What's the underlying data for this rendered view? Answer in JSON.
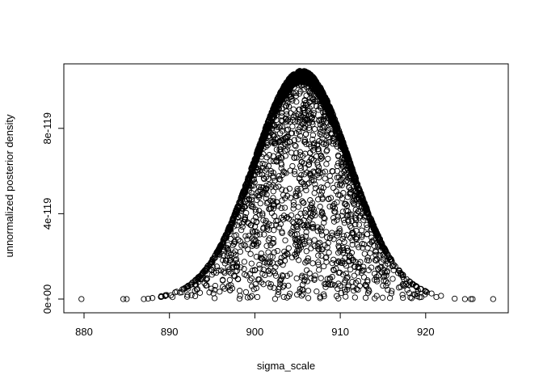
{
  "chart_data": {
    "type": "scatter",
    "title": "",
    "xlabel": "sigma_scale",
    "ylabel": "unnormalized posterior density",
    "xlim": [
      878,
      929
    ],
    "ylim": [
      -6e-120,
      1.11e-118
    ],
    "x_ticks": [
      880,
      890,
      900,
      910,
      920
    ],
    "x_tick_labels": [
      "880",
      "890",
      "900",
      "910",
      "920"
    ],
    "y_ticks": [
      0,
      4e-119,
      8e-119
    ],
    "y_tick_labels": [
      "0e+00",
      "4e-119",
      "8e-119"
    ],
    "grid": false,
    "legend": "none",
    "marker": "open-circle",
    "color": "#000000",
    "distribution_summary": {
      "peak_x": 905.5,
      "peak_density": 1.07e-118,
      "spread_sd": 5.6,
      "n_points": 3000
    },
    "tail_points": [
      {
        "x": 879.7,
        "y": 0
      },
      {
        "x": 884.6,
        "y": 0
      },
      {
        "x": 885.0,
        "y": 0
      },
      {
        "x": 887.0,
        "y": 0
      },
      {
        "x": 887.5,
        "y": 2e-121
      },
      {
        "x": 888.0,
        "y": 5e-121
      },
      {
        "x": 889.0,
        "y": 1e-120
      },
      {
        "x": 923.4,
        "y": 2e-121
      },
      {
        "x": 924.6,
        "y": 0
      },
      {
        "x": 925.3,
        "y": 0
      },
      {
        "x": 925.5,
        "y": 0
      },
      {
        "x": 927.9,
        "y": 0
      }
    ]
  }
}
